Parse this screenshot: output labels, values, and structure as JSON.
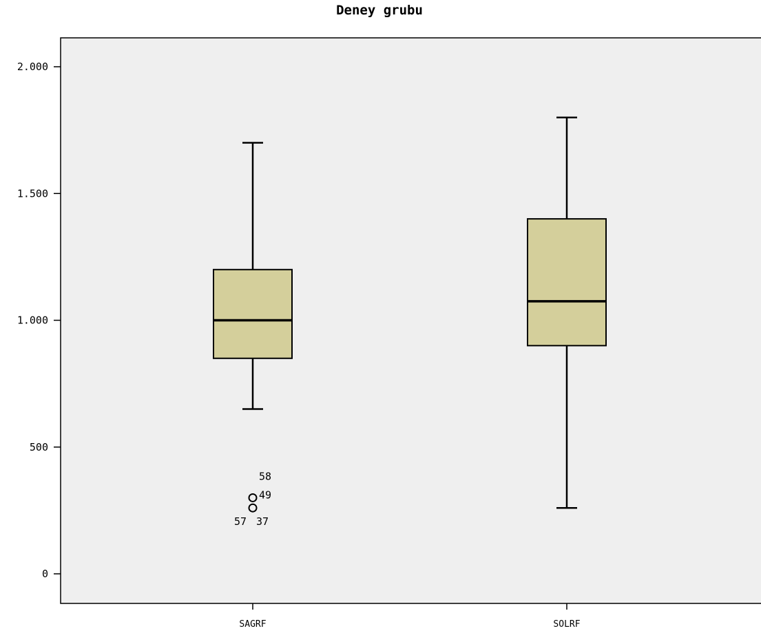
{
  "chart_data": {
    "type": "boxplot",
    "title": "Deney grubu",
    "xlabel": "",
    "ylabel": "",
    "ylim": [
      -110,
      2160
    ],
    "y_ticks": [
      {
        "value": 0,
        "label": "0"
      },
      {
        "value": 500,
        "label": "500"
      },
      {
        "value": 1000,
        "label": "1.000"
      },
      {
        "value": 1500,
        "label": "1.500"
      },
      {
        "value": 2000,
        "label": "2.000"
      }
    ],
    "categories": [
      "SAGRF",
      "SOLRF"
    ],
    "series": [
      {
        "category": "SAGRF",
        "min": 650,
        "q1": 850,
        "median": 1000,
        "q3": 1200,
        "max": 1700,
        "outliers": [
          {
            "value": 300,
            "label": "49"
          },
          {
            "value": 300,
            "label": "58"
          },
          {
            "value": 260,
            "label": "57"
          },
          {
            "value": 260,
            "label": "37"
          }
        ]
      },
      {
        "category": "SOLRF",
        "min": 260,
        "q1": 900,
        "median": 1075,
        "q3": 1400,
        "max": 1800,
        "outliers": []
      }
    ],
    "grid": false,
    "legend": "none",
    "colors": {
      "plot_background": "#efefef",
      "box_fill": "#d4cf9b",
      "stroke": "#000000"
    }
  }
}
